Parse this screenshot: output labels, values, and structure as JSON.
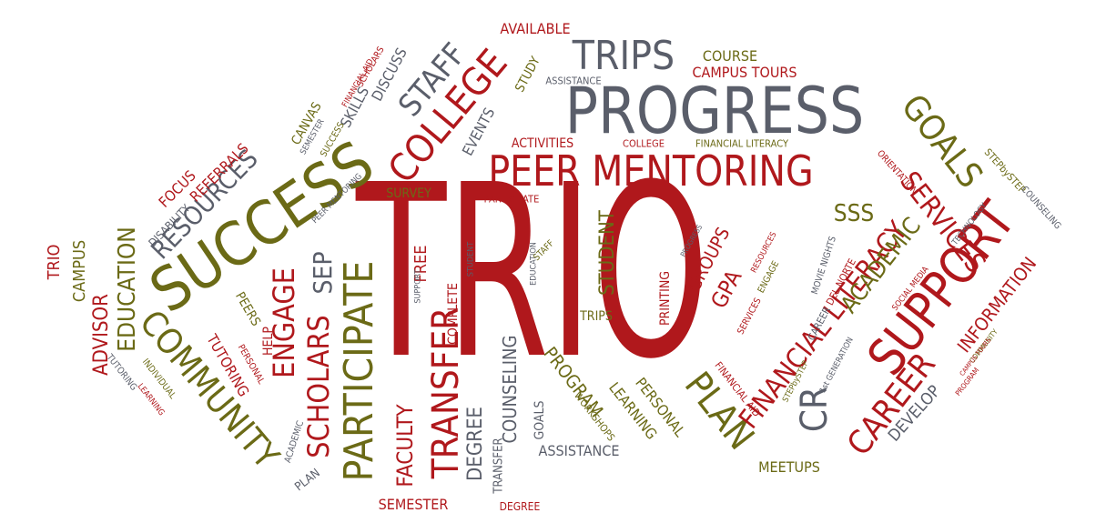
{
  "palette": {
    "red": "#b0181c",
    "olive": "#6b6a16",
    "slate": "#5a5e6a"
  },
  "words": [
    {
      "text": "TRIO",
      "color": "red"
    },
    {
      "text": "PROGRESS",
      "color": "slate"
    },
    {
      "text": "PEER MENTORING",
      "color": "red"
    },
    {
      "text": "SUCCESS",
      "color": "olive"
    },
    {
      "text": "SUPPORT",
      "color": "red"
    },
    {
      "text": "TRIPS",
      "color": "slate"
    },
    {
      "text": "COLLEGE",
      "color": "red"
    },
    {
      "text": "STAFF",
      "color": "slate"
    },
    {
      "text": "COMMUNITY",
      "color": "olive"
    },
    {
      "text": "PARTICIPATE",
      "color": "olive"
    },
    {
      "text": "TRANSFER",
      "color": "red"
    },
    {
      "text": "SCHOLARS",
      "color": "red"
    },
    {
      "text": "ENGAGE",
      "color": "red"
    },
    {
      "text": "CAREER",
      "color": "red"
    },
    {
      "text": "PLAN",
      "color": "olive"
    },
    {
      "text": "CR",
      "color": "slate"
    },
    {
      "text": "GOALS",
      "color": "olive"
    },
    {
      "text": "SERVICES",
      "color": "red"
    },
    {
      "text": "FINANCIAL LITERACY",
      "color": "red"
    },
    {
      "text": "ACADEMIC",
      "color": "olive"
    },
    {
      "text": "INFORMATION",
      "color": "red"
    },
    {
      "text": "RESOURCES",
      "color": "slate"
    },
    {
      "text": "EDUCATION",
      "color": "olive"
    },
    {
      "text": "ADVISOR",
      "color": "red"
    },
    {
      "text": "CAMPUS",
      "color": "olive"
    },
    {
      "text": "TRIO",
      "color": "red"
    },
    {
      "text": "SEP",
      "color": "slate"
    },
    {
      "text": "FACULTY",
      "color": "red"
    },
    {
      "text": "DEGREE",
      "color": "slate"
    },
    {
      "text": "COUNSELING",
      "color": "slate"
    },
    {
      "text": "PROGRAM",
      "color": "olive"
    },
    {
      "text": "LEARNING",
      "color": "olive"
    },
    {
      "text": "PERSONAL",
      "color": "olive"
    },
    {
      "text": "STUDENT",
      "color": "olive"
    },
    {
      "text": "FREE",
      "color": "red"
    },
    {
      "text": "SSS",
      "color": "olive"
    },
    {
      "text": "GPA",
      "color": "red"
    },
    {
      "text": "GROUPS",
      "color": "red"
    },
    {
      "text": "DEVELOP",
      "color": "slate"
    },
    {
      "text": "MEETUPS",
      "color": "olive"
    },
    {
      "text": "SEMESTER",
      "color": "red"
    },
    {
      "text": "ASSISTANCE",
      "color": "slate"
    },
    {
      "text": "AVAILABLE",
      "color": "red"
    },
    {
      "text": "COURSE",
      "color": "olive"
    },
    {
      "text": "CAMPUS TOURS",
      "color": "red"
    },
    {
      "text": "DISCUSS",
      "color": "slate"
    },
    {
      "text": "SKILLS",
      "color": "slate"
    },
    {
      "text": "EVENTS",
      "color": "slate"
    },
    {
      "text": "STUDY",
      "color": "olive"
    },
    {
      "text": "ACTIVITIES",
      "color": "red"
    },
    {
      "text": "SURVEY",
      "color": "olive"
    },
    {
      "text": "REFERRALS",
      "color": "red"
    },
    {
      "text": "FOCUS",
      "color": "red"
    },
    {
      "text": "CANVAS",
      "color": "olive"
    },
    {
      "text": "TUTORING",
      "color": "red"
    },
    {
      "text": "PEERS",
      "color": "olive"
    },
    {
      "text": "HELP",
      "color": "red"
    },
    {
      "text": "PRINTING",
      "color": "red"
    },
    {
      "text": "TRIPS",
      "color": "olive"
    },
    {
      "text": "COMPLETE",
      "color": "red"
    },
    {
      "text": "GOALS",
      "color": "slate"
    },
    {
      "text": "TRANSFER",
      "color": "slate"
    },
    {
      "text": "DEGREE",
      "color": "red"
    },
    {
      "text": "PLAN",
      "color": "slate"
    },
    {
      "text": "STEPbySTEP",
      "color": "olive"
    },
    {
      "text": "COUNSELING",
      "color": "slate"
    },
    {
      "text": "ORIENTATION",
      "color": "red"
    },
    {
      "text": "DISABILITY",
      "color": "slate"
    },
    {
      "text": "TUTORING",
      "color": "slate"
    },
    {
      "text": "ASSISTANCE",
      "color": "slate"
    },
    {
      "text": "COLLEGE",
      "color": "red"
    },
    {
      "text": "FINANCIAL LITERACY",
      "color": "olive"
    },
    {
      "text": "PARTICIPATE",
      "color": "red"
    },
    {
      "text": "SUCCESS",
      "color": "olive"
    },
    {
      "text": "SCHOLARS",
      "color": "red"
    },
    {
      "text": "FINANCIAL AID",
      "color": "red"
    },
    {
      "text": "SEMESTER",
      "color": "slate"
    },
    {
      "text": "PEER MENTORING",
      "color": "slate"
    },
    {
      "text": "PERSONAL",
      "color": "red"
    },
    {
      "text": "ACADEMIC",
      "color": "slate"
    },
    {
      "text": "INDIVIDUAL",
      "color": "olive"
    },
    {
      "text": "LEARNING",
      "color": "red"
    },
    {
      "text": "SUPPORT",
      "color": "slate"
    },
    {
      "text": "STUDENT",
      "color": "slate"
    },
    {
      "text": "EDUCATION",
      "color": "slate"
    },
    {
      "text": "STAFF",
      "color": "olive"
    },
    {
      "text": "PROGRESS",
      "color": "slate"
    },
    {
      "text": "WORKSHOPS",
      "color": "olive"
    },
    {
      "text": "MOVIE NIGHTS",
      "color": "slate"
    },
    {
      "text": "DEL NORTE",
      "color": "red"
    },
    {
      "text": "CAREER",
      "color": "slate"
    },
    {
      "text": "SOCIAL MEDIA",
      "color": "red"
    },
    {
      "text": "TECHNOLOGY",
      "color": "slate"
    },
    {
      "text": "COMMUNITY",
      "color": "olive"
    },
    {
      "text": "CAMPUS TOURS",
      "color": "red"
    },
    {
      "text": "PROGRAM",
      "color": "red"
    },
    {
      "text": "1st GENERATION",
      "color": "slate"
    },
    {
      "text": "STEPbySTEP",
      "color": "olive"
    },
    {
      "text": "FINANCIAL AID",
      "color": "red"
    },
    {
      "text": "SERVICES",
      "color": "red"
    },
    {
      "text": "ENGAGE",
      "color": "olive"
    },
    {
      "text": "RESOURCES",
      "color": "red"
    }
  ]
}
